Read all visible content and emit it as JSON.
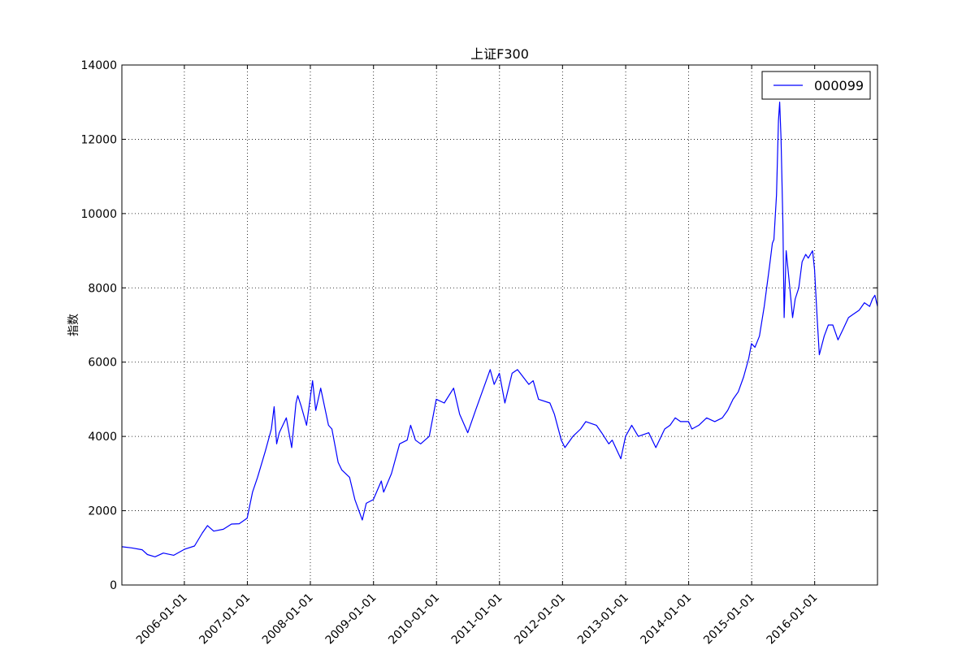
{
  "chart_data": {
    "type": "line",
    "title": "上证F300",
    "xlabel": "",
    "ylabel": "指数",
    "xlim": [
      "2005-01-04",
      "2016-12-30"
    ],
    "ylim": [
      0,
      14000
    ],
    "grid": true,
    "legend_position": "top-right",
    "x_ticks": [
      "2006-01-01",
      "2007-01-01",
      "2008-01-01",
      "2009-01-01",
      "2010-01-01",
      "2011-01-01",
      "2012-01-01",
      "2013-01-01",
      "2014-01-01",
      "2015-01-01",
      "2016-01-01"
    ],
    "y_ticks": [
      0,
      2000,
      4000,
      6000,
      8000,
      10000,
      12000,
      14000
    ],
    "line_color": "#0000ff",
    "series": [
      {
        "name": "000099",
        "x": [
          "2005-01-04",
          "2005-03-01",
          "2005-05-01",
          "2005-06-01",
          "2005-07-15",
          "2005-09-01",
          "2005-11-01",
          "2006-01-01",
          "2006-03-01",
          "2006-04-15",
          "2006-05-15",
          "2006-06-20",
          "2006-08-15",
          "2006-10-01",
          "2006-11-15",
          "2006-12-31",
          "2007-01-31",
          "2007-03-01",
          "2007-04-15",
          "2007-05-20",
          "2007-06-05",
          "2007-06-20",
          "2007-07-05",
          "2007-08-15",
          "2007-09-15",
          "2007-10-10",
          "2007-10-20",
          "2007-11-10",
          "2007-12-10",
          "2008-01-14",
          "2008-02-01",
          "2008-03-01",
          "2008-04-15",
          "2008-05-05",
          "2008-06-10",
          "2008-07-01",
          "2008-08-15",
          "2008-09-15",
          "2008-10-28",
          "2008-11-20",
          "2008-12-31",
          "2009-02-15",
          "2009-03-01",
          "2009-04-15",
          "2009-06-01",
          "2009-07-15",
          "2009-08-04",
          "2009-09-01",
          "2009-10-01",
          "2009-11-20",
          "2009-12-31",
          "2010-02-15",
          "2010-04-10",
          "2010-05-15",
          "2010-07-01",
          "2010-08-15",
          "2010-09-15",
          "2010-11-08",
          "2010-12-01",
          "2010-12-31",
          "2011-02-01",
          "2011-03-15",
          "2011-04-15",
          "2011-06-20",
          "2011-07-15",
          "2011-08-15",
          "2011-10-20",
          "2011-11-15",
          "2011-12-25",
          "2012-01-15",
          "2012-03-01",
          "2012-04-15",
          "2012-05-15",
          "2012-07-15",
          "2012-08-15",
          "2012-09-25",
          "2012-10-15",
          "2012-12-04",
          "2012-12-31",
          "2013-02-05",
          "2013-03-15",
          "2013-05-15",
          "2013-06-25",
          "2013-08-15",
          "2013-09-15",
          "2013-10-15",
          "2013-11-15",
          "2013-12-31",
          "2014-01-20",
          "2014-03-01",
          "2014-04-15",
          "2014-06-01",
          "2014-07-15",
          "2014-08-15",
          "2014-09-15",
          "2014-10-15",
          "2014-11-15",
          "2014-12-15",
          "2014-12-31",
          "2015-01-20",
          "2015-02-15",
          "2015-03-15",
          "2015-04-15",
          "2015-05-01",
          "2015-05-10",
          "2015-05-25",
          "2015-06-05",
          "2015-06-12",
          "2015-06-20",
          "2015-07-01",
          "2015-07-08",
          "2015-07-20",
          "2015-08-10",
          "2015-08-26",
          "2015-09-10",
          "2015-10-01",
          "2015-10-20",
          "2015-11-10",
          "2015-11-25",
          "2015-12-20",
          "2015-12-31",
          "2016-01-15",
          "2016-01-28",
          "2016-02-25",
          "2016-03-20",
          "2016-04-15",
          "2016-05-15",
          "2016-06-15",
          "2016-07-15",
          "2016-08-15",
          "2016-09-15",
          "2016-10-15",
          "2016-11-15",
          "2016-12-01",
          "2016-12-15",
          "2016-12-30"
        ],
        "values": [
          1030,
          1000,
          950,
          820,
          760,
          860,
          800,
          960,
          1050,
          1400,
          1600,
          1450,
          1500,
          1640,
          1650,
          1800,
          2500,
          2900,
          3600,
          4200,
          4800,
          3800,
          4100,
          4500,
          3700,
          4900,
          5100,
          4800,
          4300,
          5500,
          4700,
          5300,
          4300,
          4200,
          3300,
          3100,
          2900,
          2300,
          1750,
          2200,
          2300,
          2800,
          2500,
          3000,
          3800,
          3900,
          4300,
          3900,
          3800,
          4000,
          5000,
          4900,
          5300,
          4600,
          4100,
          4700,
          5100,
          5800,
          5400,
          5700,
          4900,
          5700,
          5800,
          5400,
          5500,
          5000,
          4900,
          4600,
          3900,
          3700,
          4000,
          4200,
          4400,
          4300,
          4100,
          3800,
          3900,
          3400,
          4000,
          4300,
          4000,
          4100,
          3700,
          4200,
          4300,
          4500,
          4400,
          4400,
          4200,
          4300,
          4500,
          4400,
          4500,
          4700,
          5000,
          5200,
          5600,
          6100,
          6500,
          6400,
          6700,
          7500,
          8600,
          9200,
          9300,
          10500,
          12500,
          13000,
          12000,
          9700,
          7200,
          9000,
          8000,
          7200,
          7700,
          8000,
          8700,
          8900,
          8800,
          9000,
          8500,
          7200,
          6200,
          6700,
          7000,
          7000,
          6600,
          6900,
          7200,
          7300,
          7400,
          7600,
          7500,
          7700,
          7800,
          7500
        ]
      }
    ]
  }
}
